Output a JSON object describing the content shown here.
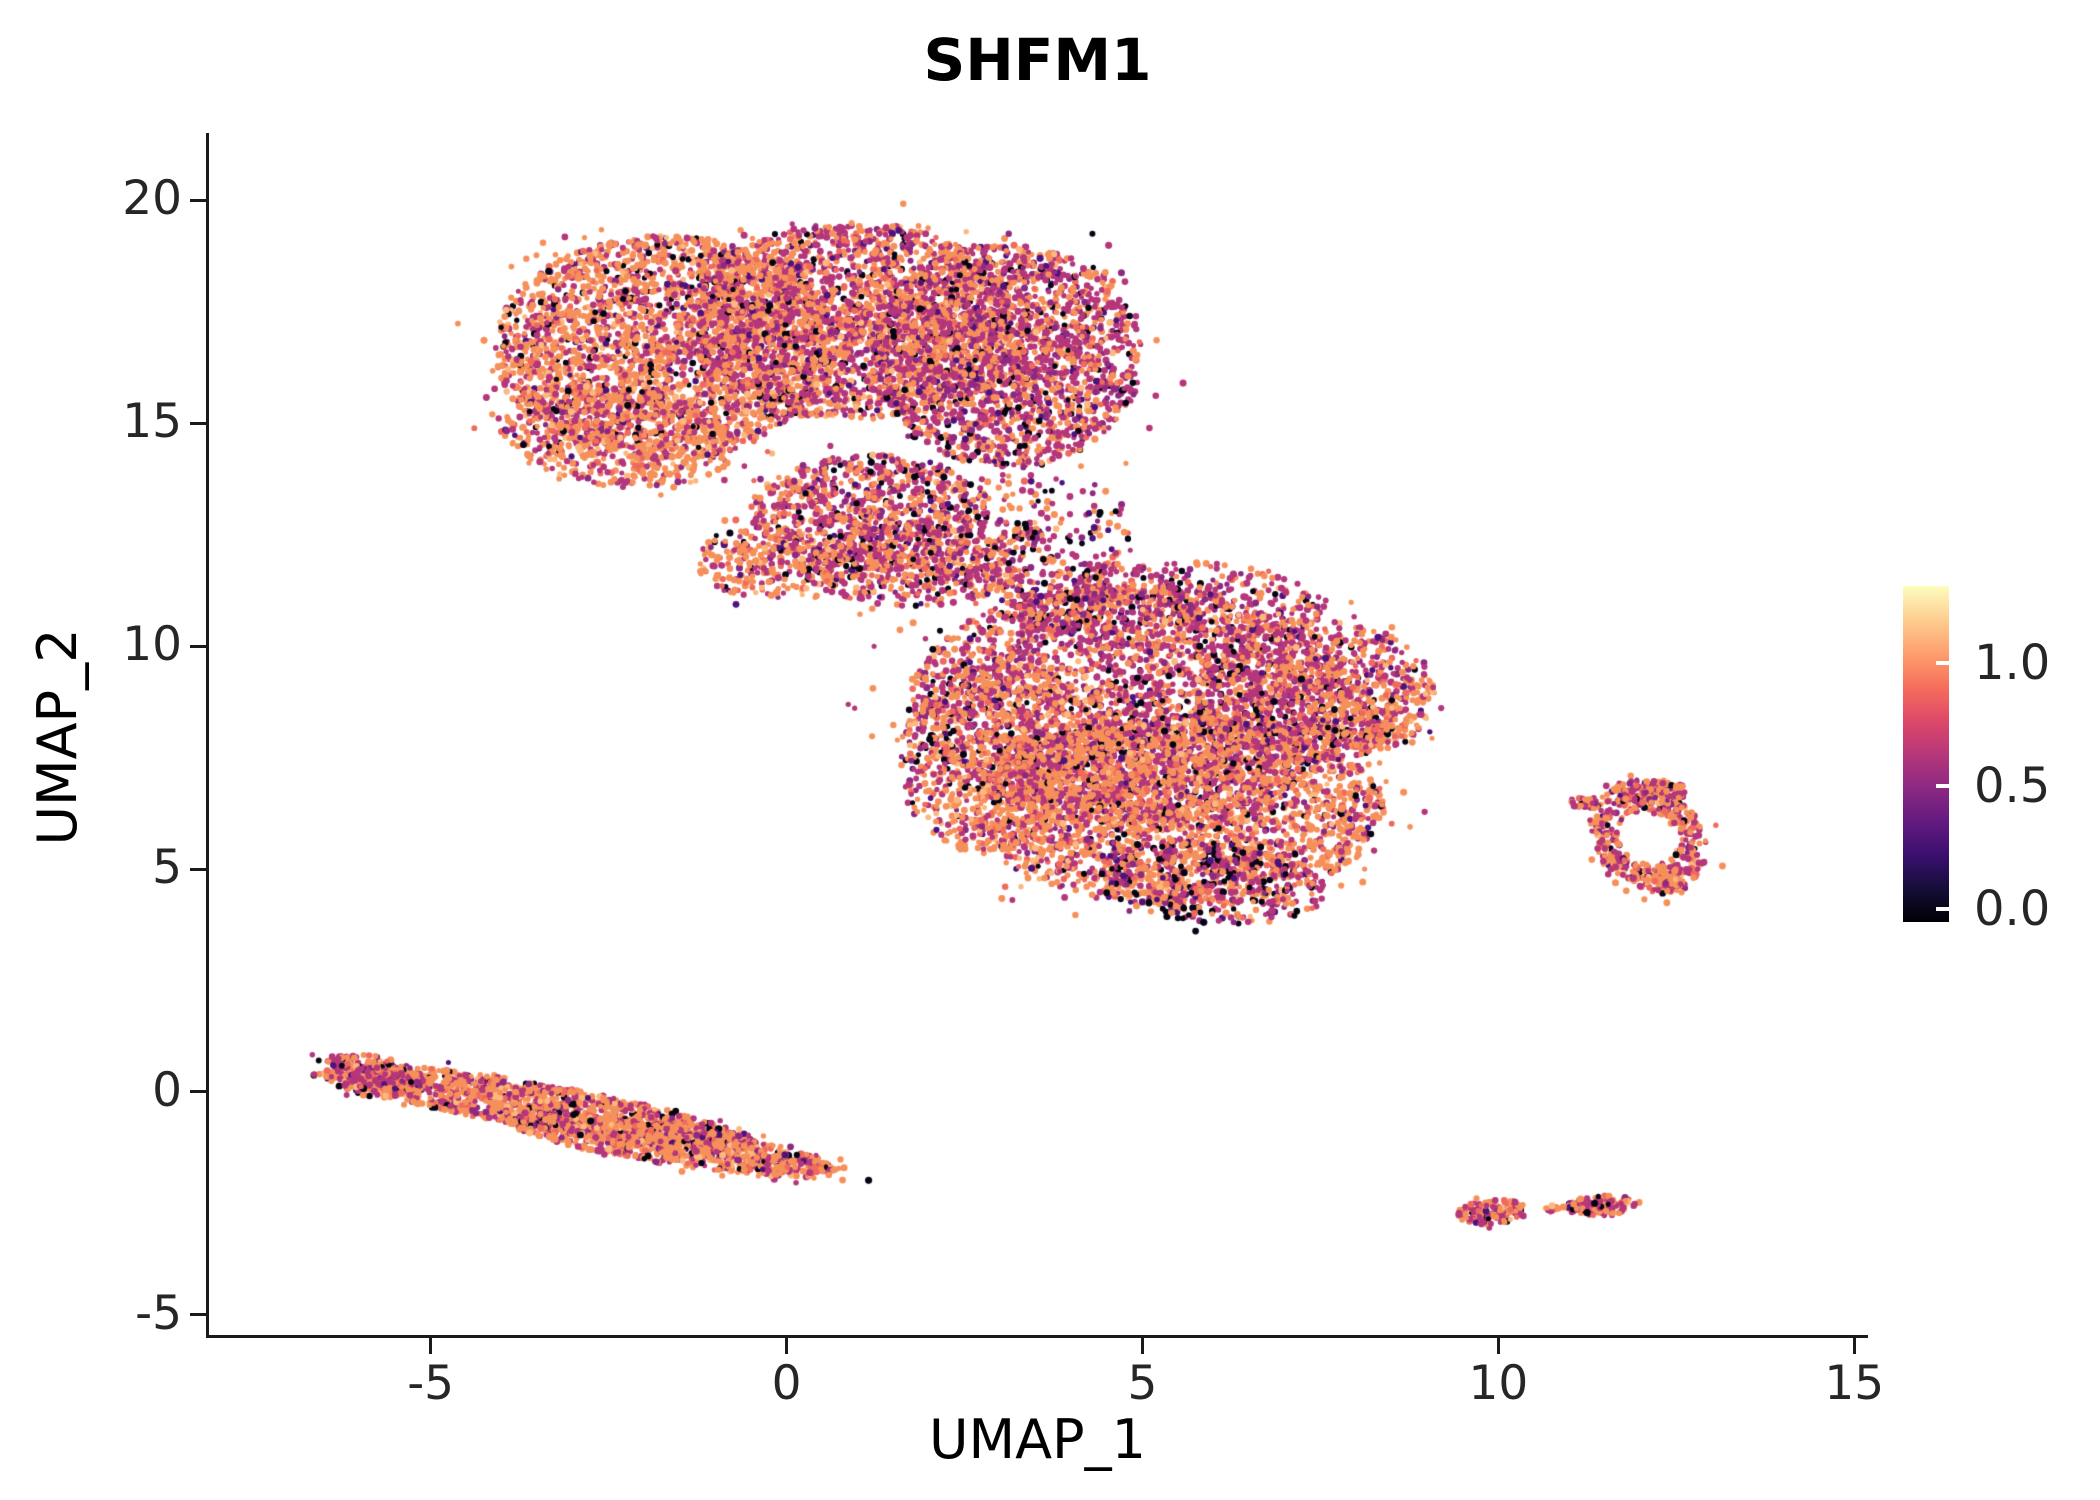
{
  "chart_data": {
    "type": "scatter",
    "title": "SHFM1",
    "xlabel": "UMAP_1",
    "ylabel": "UMAP_2",
    "xlim": [
      -8.1,
      15.15
    ],
    "ylim": [
      -5.45,
      21.46
    ],
    "grid": false,
    "legend_position": "right",
    "xticks": [
      {
        "v": -5,
        "label": "-5"
      },
      {
        "v": 0,
        "label": "0"
      },
      {
        "v": 5,
        "label": "5"
      },
      {
        "v": 10,
        "label": "10"
      },
      {
        "v": 15,
        "label": "15"
      }
    ],
    "yticks": [
      {
        "v": -5,
        "label": "-5"
      },
      {
        "v": 0,
        "label": "0"
      },
      {
        "v": 5,
        "label": "5"
      },
      {
        "v": 10,
        "label": "10"
      },
      {
        "v": 15,
        "label": "15"
      },
      {
        "v": 20,
        "label": "20"
      }
    ],
    "colorbar": {
      "gradient_bottom_to_top": [
        "#000004",
        "#150e38",
        "#3b0f70",
        "#641a80",
        "#8c2981",
        "#b73779",
        "#de4968",
        "#f66e5c",
        "#fe9f6d",
        "#fece91",
        "#fcfdbf"
      ],
      "ticks": [
        {
          "f": 0.77,
          "label": "1.0"
        },
        {
          "f": 0.405,
          "label": "0.5"
        },
        {
          "f": 0.04,
          "label": "0.0"
        }
      ]
    },
    "point_radius": 2.9,
    "seed": 42,
    "mixes": {
      "orange": [
        [
          "#F6905A",
          0.52
        ],
        [
          "#EF6A5D",
          0.09
        ],
        [
          "#FCB87E",
          0.06
        ],
        [
          "#B5367A",
          0.22
        ],
        [
          "#8C2981",
          0.04
        ],
        [
          "#4F127B",
          0.02
        ],
        [
          "#060413",
          0.05
        ]
      ],
      "balanced": [
        [
          "#F6905A",
          0.4
        ],
        [
          "#EF6A5D",
          0.07
        ],
        [
          "#FCB87E",
          0.03
        ],
        [
          "#B5367A",
          0.35
        ],
        [
          "#8C2981",
          0.06
        ],
        [
          "#4F127B",
          0.03
        ],
        [
          "#060413",
          0.06
        ]
      ],
      "magenta": [
        [
          "#F6905A",
          0.3
        ],
        [
          "#EF6A5D",
          0.06
        ],
        [
          "#FCB87E",
          0.02
        ],
        [
          "#B5367A",
          0.42
        ],
        [
          "#8C2981",
          0.09
        ],
        [
          "#4F127B",
          0.04
        ],
        [
          "#060413",
          0.07
        ]
      ],
      "dark": [
        [
          "#F6905A",
          0.25
        ],
        [
          "#EF6A5D",
          0.05
        ],
        [
          "#FCB87E",
          0.02
        ],
        [
          "#B5367A",
          0.34
        ],
        [
          "#8C2981",
          0.1
        ],
        [
          "#4F127B",
          0.06
        ],
        [
          "#060413",
          0.18
        ]
      ]
    },
    "clusters": [
      {
        "name": "top-left-lobe",
        "cx": -1.7,
        "cy": 16.7,
        "rx": 2.4,
        "ry": 2.5,
        "rot": 0,
        "n": 2600,
        "mix": "orange"
      },
      {
        "name": "top-mid-lobe",
        "cx": 0.9,
        "cy": 17.3,
        "rx": 2.3,
        "ry": 2.2,
        "rot": 0,
        "n": 2300,
        "mix": "balanced"
      },
      {
        "name": "top-right-lobe",
        "cx": 3.1,
        "cy": 16.5,
        "rx": 1.9,
        "ry": 2.5,
        "rot": 0,
        "n": 2100,
        "mix": "magenta"
      },
      {
        "name": "top-lower-left",
        "cx": -2.4,
        "cy": 14.7,
        "rx": 1.7,
        "ry": 1.1,
        "rot": -15,
        "n": 650,
        "mix": "orange"
      },
      {
        "name": "neck-upper",
        "cx": 1.2,
        "cy": 13.0,
        "rx": 1.7,
        "ry": 1.3,
        "rot": 0,
        "n": 850,
        "mix": "magenta"
      },
      {
        "name": "neck-lower",
        "cx": 1.8,
        "cy": 11.8,
        "rx": 1.6,
        "ry": 0.9,
        "rot": 0,
        "n": 520,
        "mix": "balanced"
      },
      {
        "name": "neck-left-tail",
        "cx": -0.3,
        "cy": 11.9,
        "rx": 1.0,
        "ry": 0.8,
        "rot": 0,
        "n": 260,
        "mix": "orange"
      },
      {
        "name": "neck-sparse",
        "cx": 3.4,
        "cy": 12.6,
        "rx": 1.6,
        "ry": 1.3,
        "rot": 0,
        "n": 230,
        "mix": "dark",
        "pow": 0.8
      },
      {
        "name": "gap-sparse",
        "cx": 4.3,
        "cy": 11.2,
        "rx": 1.3,
        "ry": 0.8,
        "rot": 0,
        "n": 140,
        "mix": "dark",
        "pow": 0.9
      },
      {
        "name": "mid-core",
        "cx": 4.8,
        "cy": 8.7,
        "rx": 3.1,
        "ry": 2.7,
        "rot": 0,
        "n": 3000,
        "mix": "magenta"
      },
      {
        "name": "mid-lower",
        "cx": 5.5,
        "cy": 6.3,
        "rx": 2.9,
        "ry": 2.1,
        "rot": 0,
        "n": 2400,
        "mix": "orange"
      },
      {
        "name": "mid-left",
        "cx": 3.1,
        "cy": 7.4,
        "rx": 1.5,
        "ry": 2.2,
        "rot": 0,
        "n": 800,
        "mix": "orange"
      },
      {
        "name": "mid-right",
        "cx": 7.4,
        "cy": 9.0,
        "rx": 1.7,
        "ry": 1.6,
        "rot": 0,
        "n": 850,
        "mix": "balanced"
      },
      {
        "name": "mid-top-edge",
        "cx": 5.3,
        "cy": 10.9,
        "rx": 2.3,
        "ry": 1.0,
        "rot": 0,
        "n": 480,
        "mix": "magenta"
      },
      {
        "name": "mid-bottom-tip",
        "cx": 5.9,
        "cy": 4.7,
        "rx": 1.7,
        "ry": 0.9,
        "rot": -10,
        "n": 420,
        "mix": "dark"
      },
      {
        "name": "mid-right-knob",
        "cx": 8.2,
        "cy": 8.2,
        "rx": 0.7,
        "ry": 0.55,
        "rot": 0,
        "n": 200,
        "mix": "orange"
      },
      {
        "name": "ring-right",
        "cx": 12.1,
        "cy": 5.7,
        "rx": 0.8,
        "ry": 1.2,
        "rot": 15,
        "inner": 0.5,
        "n": 440,
        "mix": "balanced"
      },
      {
        "name": "ring-top-knob",
        "cx": 12.15,
        "cy": 6.75,
        "rx": 0.5,
        "ry": 0.28,
        "rot": 0,
        "n": 110,
        "mix": "balanced"
      },
      {
        "name": "ring-bottom-tip",
        "cx": 12.35,
        "cy": 4.75,
        "rx": 0.28,
        "ry": 0.35,
        "rot": 0,
        "n": 80,
        "mix": "orange"
      },
      {
        "name": "ring-left-dot",
        "cx": 11.2,
        "cy": 6.5,
        "rx": 0.2,
        "ry": 0.12,
        "rot": 0,
        "n": 30,
        "mix": "balanced"
      },
      {
        "name": "stripe-main",
        "cx": -3.4,
        "cy": -0.35,
        "rx": 3.1,
        "ry": 0.5,
        "rot": -16,
        "n": 1500,
        "mix": "orange"
      },
      {
        "name": "stripe-lower",
        "cx": -1.6,
        "cy": -1.2,
        "rx": 2.4,
        "ry": 0.42,
        "rot": -14,
        "n": 900,
        "mix": "orange"
      },
      {
        "name": "stripe-left-cap",
        "cx": -5.8,
        "cy": 0.35,
        "rx": 0.75,
        "ry": 0.45,
        "rot": -20,
        "n": 260,
        "mix": "balanced"
      },
      {
        "name": "bottom-blob-left",
        "cx": 9.9,
        "cy": -2.7,
        "rx": 0.5,
        "ry": 0.27,
        "rot": 8,
        "n": 150,
        "mix": "balanced"
      },
      {
        "name": "bottom-blob-right",
        "cx": 11.45,
        "cy": -2.55,
        "rx": 0.5,
        "ry": 0.22,
        "rot": 5,
        "n": 130,
        "mix": "balanced"
      },
      {
        "name": "bottom-dot-mid",
        "cx": 10.75,
        "cy": -2.62,
        "rx": 0.1,
        "ry": 0.07,
        "rot": 0,
        "n": 12,
        "mix": "orange"
      }
    ]
  }
}
